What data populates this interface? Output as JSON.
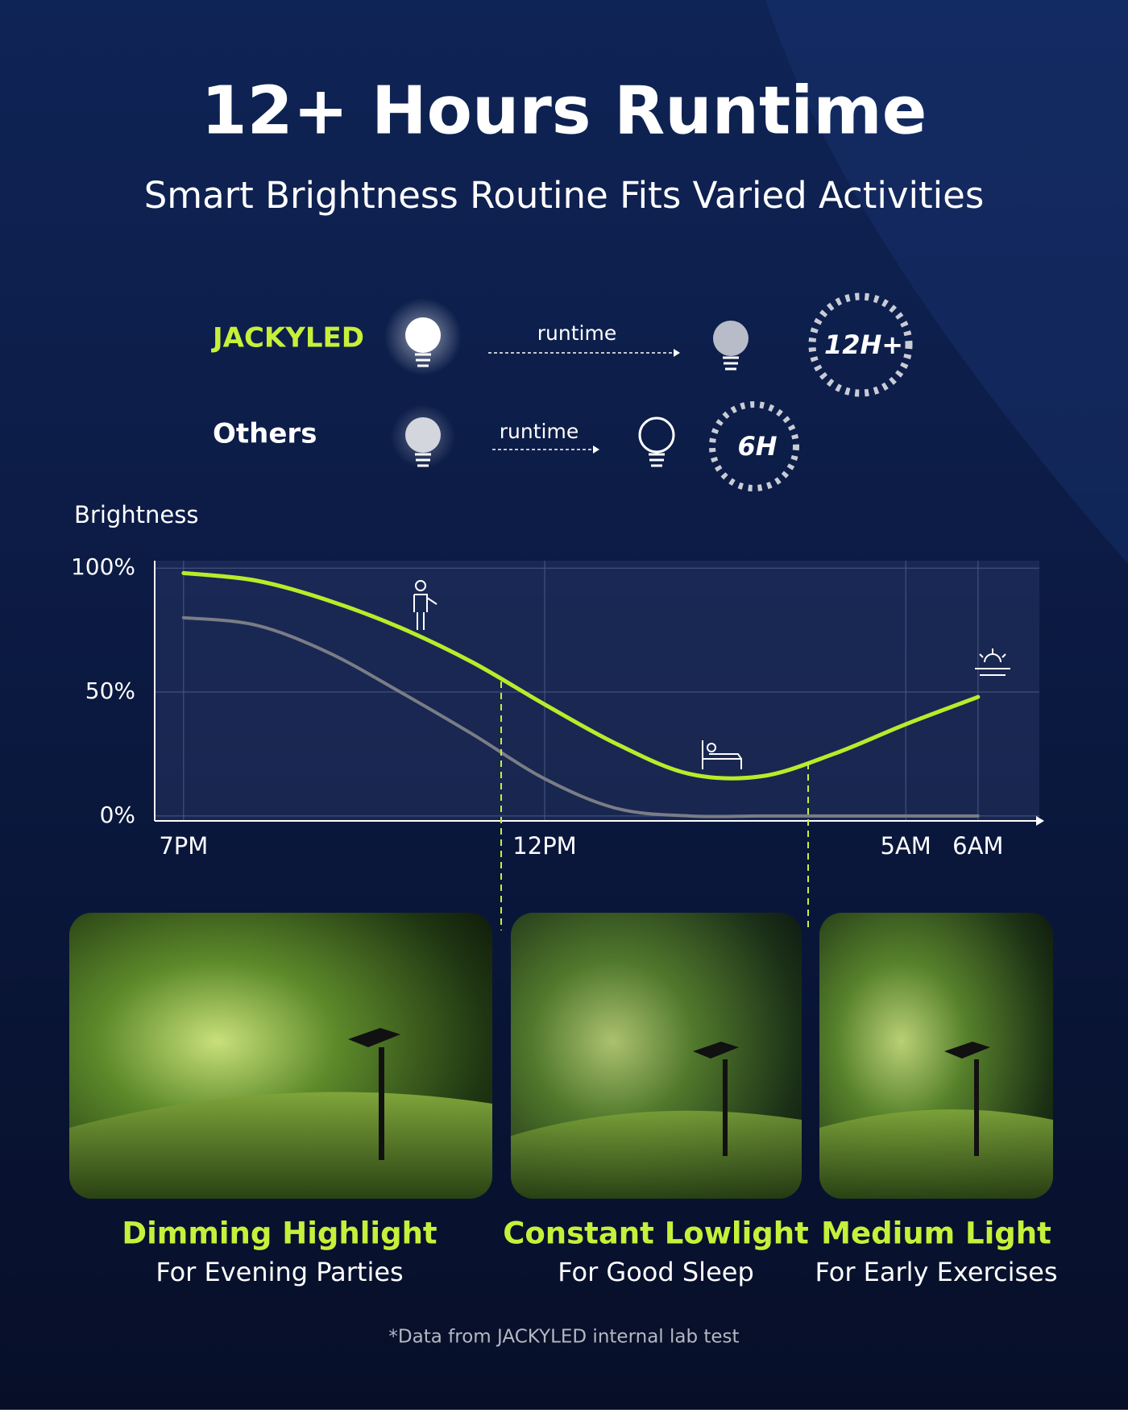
{
  "header": {
    "title": "12+ Hours Runtime",
    "subtitle": "Smart Brightness Routine Fits Varied Activities"
  },
  "comparison": [
    {
      "brand": "JACKYLED",
      "arrow_label": "runtime",
      "badge": "12H+"
    },
    {
      "brand": "Others",
      "arrow_label": "runtime",
      "badge": "6H"
    }
  ],
  "chart_data": {
    "type": "line",
    "y_label": "Brightness",
    "x": [
      0,
      1,
      2,
      3,
      4,
      5,
      6,
      7,
      8,
      9,
      10,
      11
    ],
    "xlim": [
      -0.4,
      11.85
    ],
    "xticks": [
      {
        "value": 0,
        "label": "7PM"
      },
      {
        "value": 5,
        "label": "12PM"
      },
      {
        "value": 10,
        "label": "5AM"
      },
      {
        "value": 11,
        "label": "6AM"
      }
    ],
    "ylim": [
      -2,
      103
    ],
    "yticks": [
      {
        "value": 0,
        "label": "0%"
      },
      {
        "value": 50,
        "label": "50%"
      },
      {
        "value": 100,
        "label": "100%"
      }
    ],
    "grid": true,
    "series": [
      {
        "color": "#b8ec2a",
        "values": [
          98,
          95,
          87,
          76,
          62,
          45,
          29,
          17,
          16,
          25,
          37,
          48
        ]
      },
      {
        "color": "#7a7d86",
        "values": [
          80,
          77,
          66,
          50,
          33,
          15,
          3,
          0,
          0,
          0,
          0,
          0
        ]
      }
    ]
  },
  "panels": [
    {
      "title": "Dimming Highlight",
      "subtitle": "For Evening Parties"
    },
    {
      "title": "Constant Lowlight",
      "subtitle": "For Good Sleep"
    },
    {
      "title": "Medium Light",
      "subtitle": "For Early Exercises"
    }
  ],
  "footnote": "*Data from JACKYLED internal lab test"
}
